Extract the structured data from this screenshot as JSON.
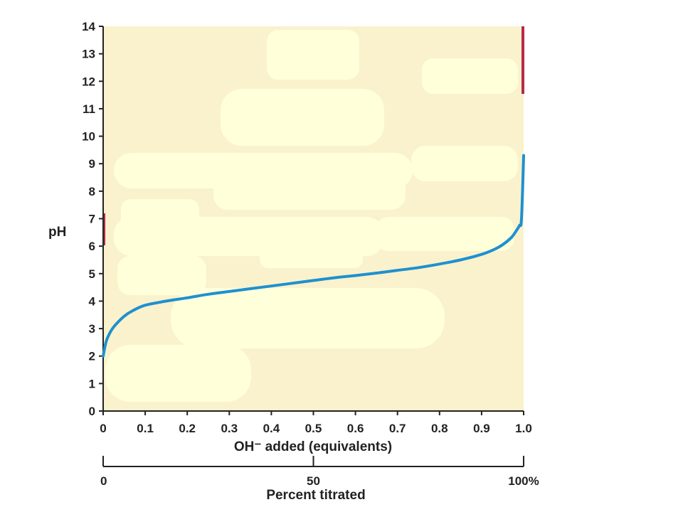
{
  "chart_data": {
    "type": "line",
    "title": "",
    "xlabel": "OH⁻ added (equivalents)",
    "ylabel": "pH",
    "xlim": [
      0,
      1.0
    ],
    "ylim": [
      0,
      14
    ],
    "x_ticks": [
      "0",
      "0.1",
      "0.2",
      "0.3",
      "0.4",
      "0.5",
      "0.6",
      "0.7",
      "0.8",
      "0.9",
      "1.0"
    ],
    "y_ticks": [
      "0",
      "1",
      "2",
      "3",
      "4",
      "5",
      "6",
      "7",
      "8",
      "9",
      "10",
      "11",
      "12",
      "13",
      "14"
    ],
    "secondary_axis": {
      "label": "Percent titrated",
      "ticks": [
        "0",
        "50",
        "100%"
      ]
    },
    "grid": false,
    "series": [
      {
        "color": "#1e90d0",
        "x": [
          0,
          0.005,
          0.01,
          0.02,
          0.03,
          0.05,
          0.07,
          0.1,
          0.15,
          0.2,
          0.25,
          0.3,
          0.35,
          0.4,
          0.45,
          0.5,
          0.55,
          0.6,
          0.65,
          0.7,
          0.75,
          0.8,
          0.85,
          0.9,
          0.93,
          0.95,
          0.97,
          0.98,
          0.99,
          0.995,
          1.0
        ],
        "y": [
          2.0,
          2.4,
          2.65,
          2.95,
          3.15,
          3.45,
          3.65,
          3.85,
          4.0,
          4.12,
          4.25,
          4.35,
          4.45,
          4.55,
          4.65,
          4.75,
          4.85,
          4.93,
          5.02,
          5.12,
          5.22,
          5.35,
          5.5,
          5.7,
          5.88,
          6.05,
          6.3,
          6.5,
          6.75,
          7.0,
          9.3
        ]
      }
    ],
    "colors": {
      "plot_background": "#faf2cc",
      "curve": "#1e90d0",
      "highlight": "#ffffd9",
      "edge_accent": "#b8284a",
      "axis": "#222222"
    }
  }
}
